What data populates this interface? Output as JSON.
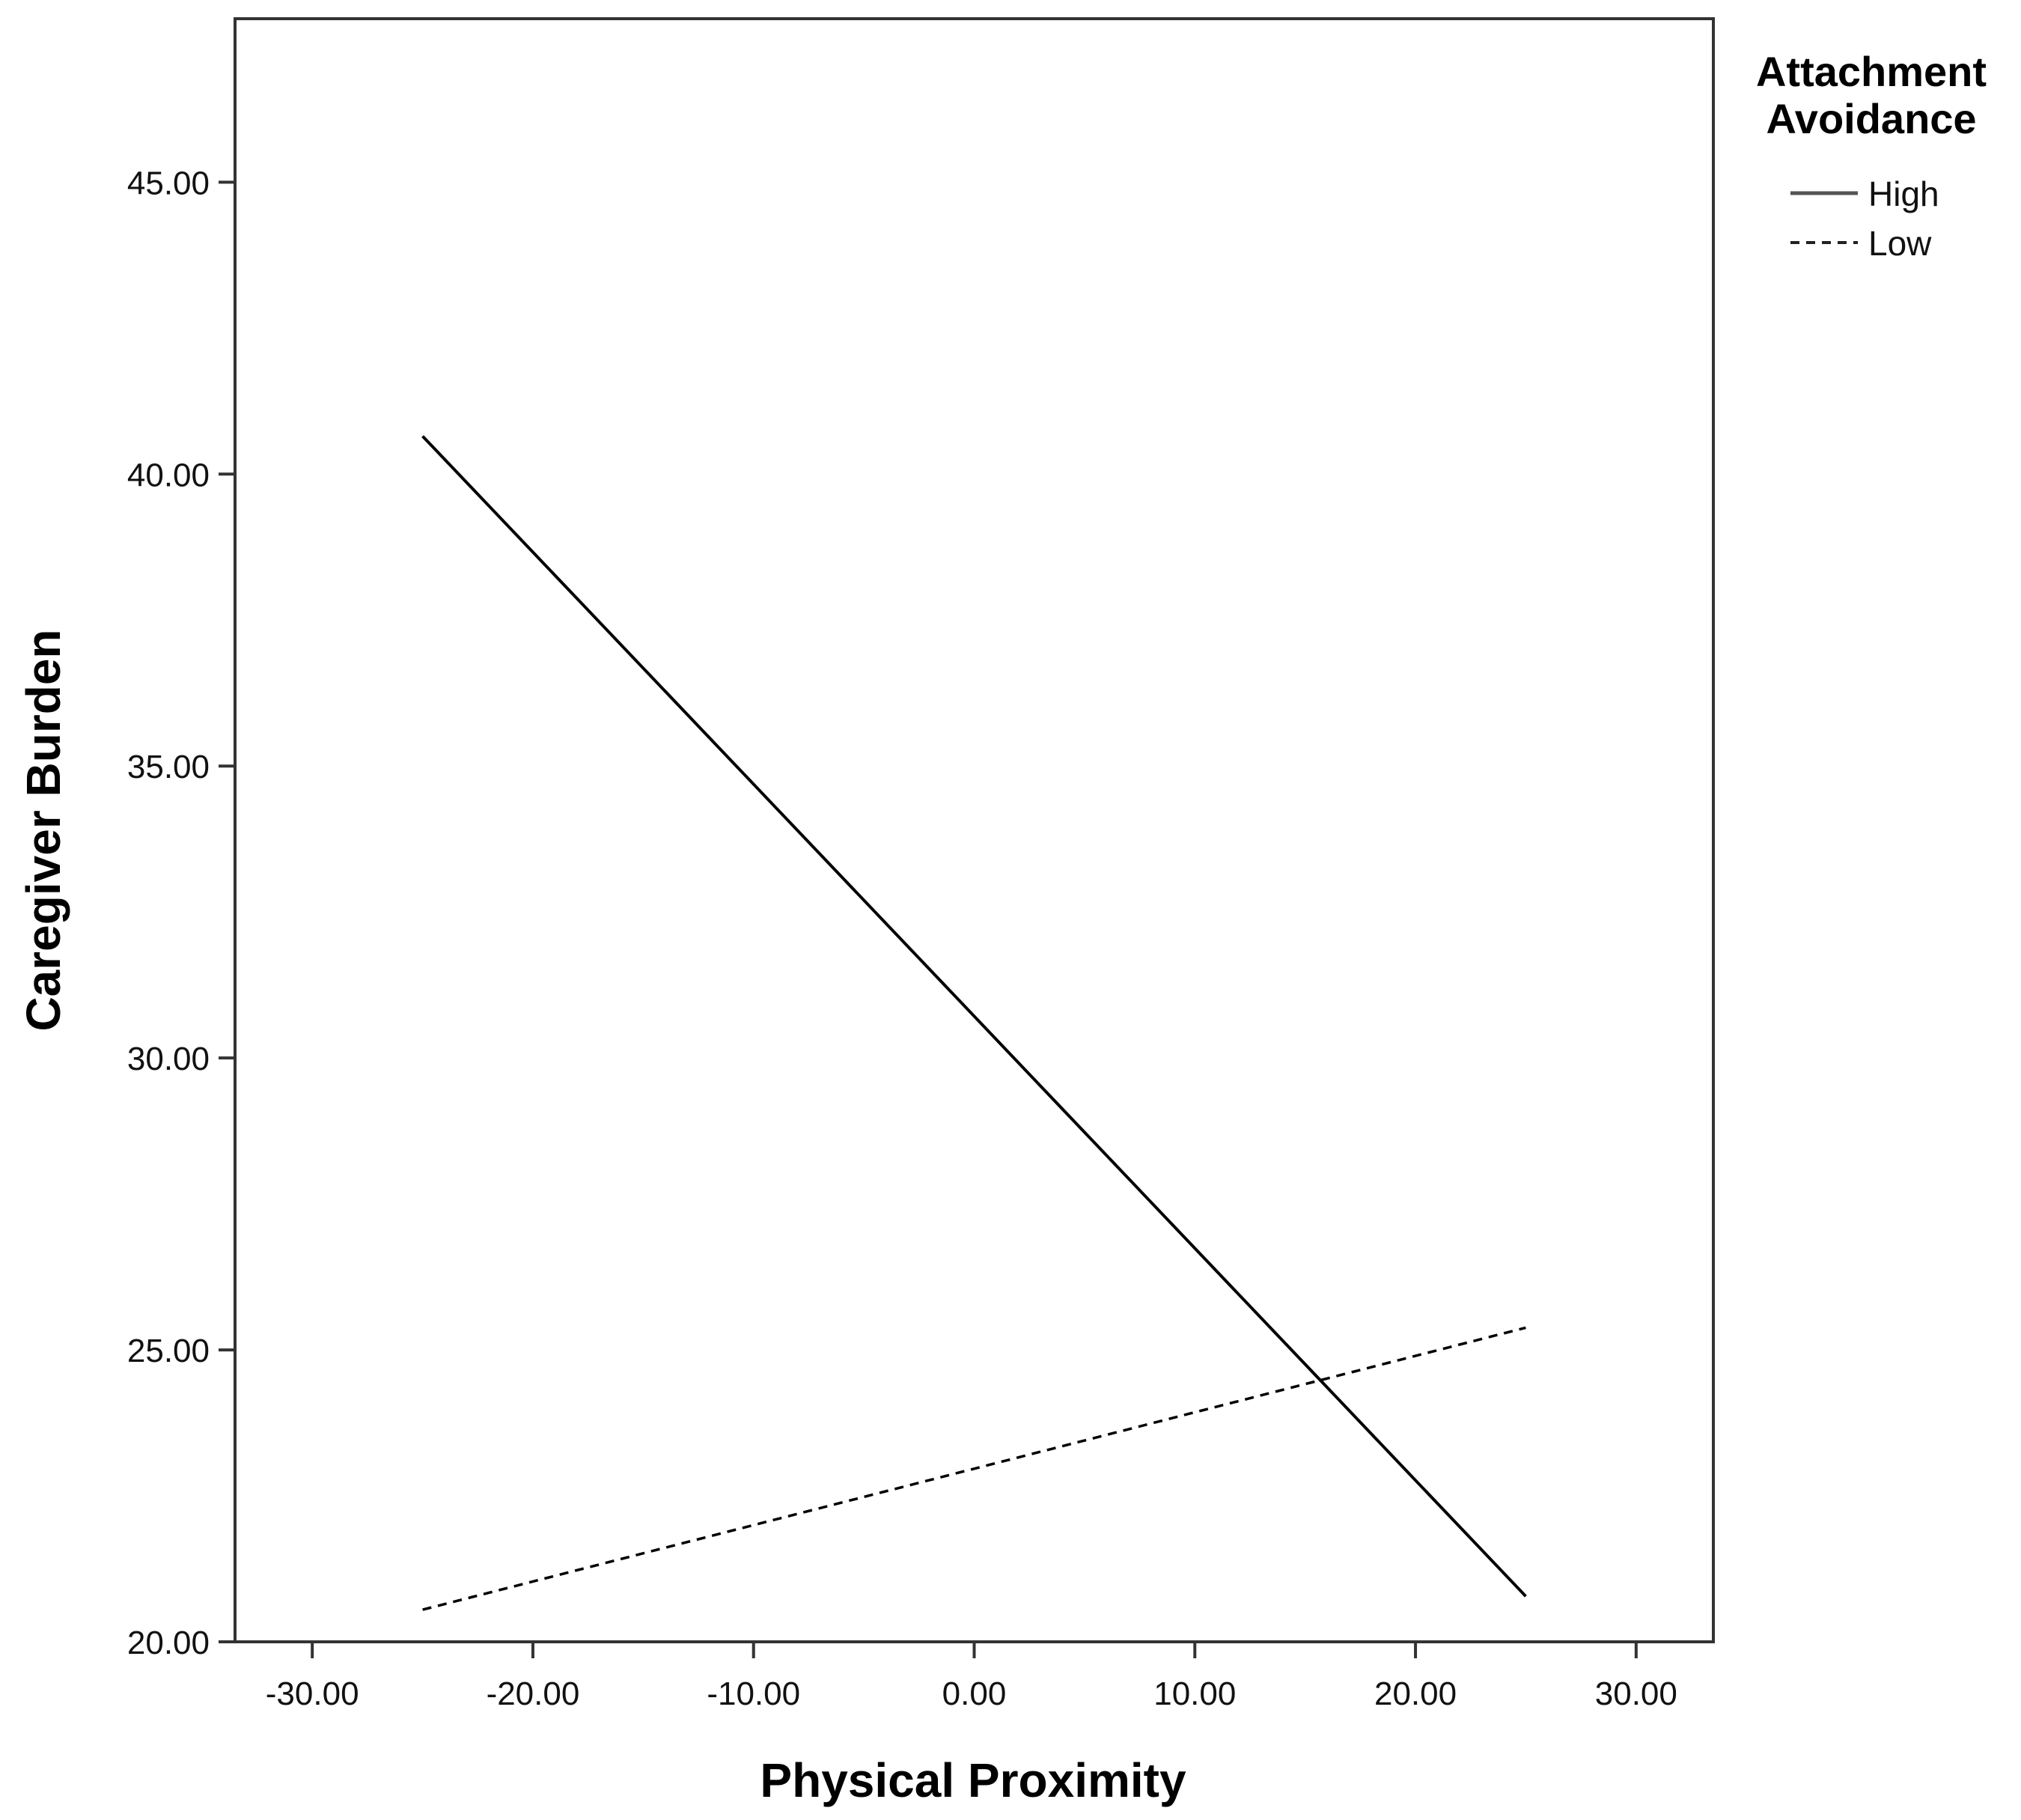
{
  "chart_data": {
    "type": "line",
    "xlabel": "Physical Proximity",
    "ylabel": "Caregiver Burden",
    "xlim": [
      -33.5,
      33.5
    ],
    "ylim": [
      20.0,
      47.8
    ],
    "x_ticks": [
      "-30.00",
      "-20.00",
      "-10.00",
      "0.00",
      "10.00",
      "20.00",
      "30.00"
    ],
    "x_tick_values": [
      -30,
      -20,
      -10,
      0,
      10,
      20,
      30
    ],
    "y_ticks": [
      "20.00",
      "25.00",
      "30.00",
      "35.00",
      "40.00",
      "45.00"
    ],
    "y_tick_values": [
      20,
      25,
      30,
      35,
      40,
      45
    ],
    "grid": false,
    "legend": {
      "title": "Attachment Avoidance",
      "title_lines": [
        "Attachment",
        "Avoidance"
      ],
      "placement": "top-right, outside plot"
    },
    "series": [
      {
        "name": "High",
        "style": "solid",
        "color": "#000000",
        "x": [
          -25,
          25
        ],
        "y": [
          40.65,
          20.78
        ]
      },
      {
        "name": "Low",
        "style": "dashed",
        "color": "#000000",
        "x": [
          -25,
          25
        ],
        "y": [
          20.55,
          25.38
        ]
      }
    ]
  }
}
